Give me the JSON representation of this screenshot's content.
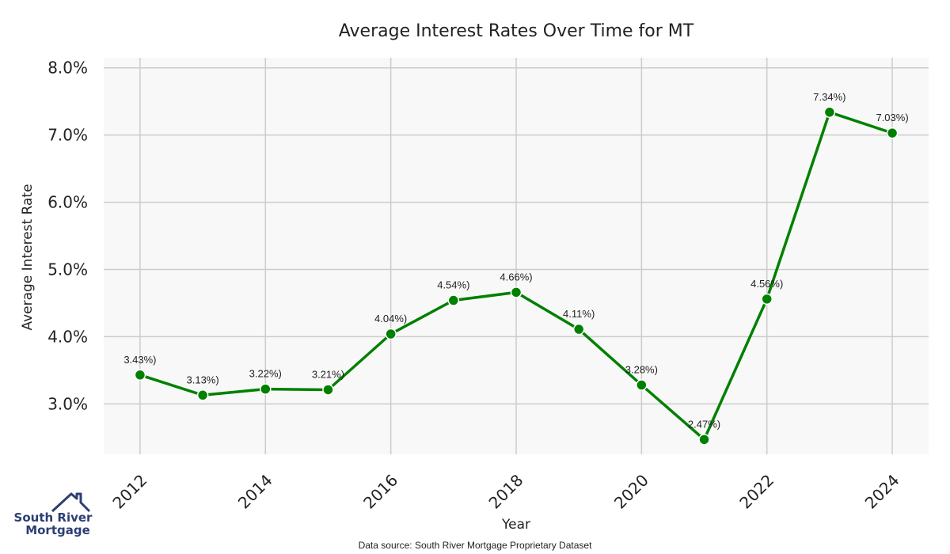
{
  "chart_data": {
    "type": "line",
    "title": "Average Interest Rates Over Time for MT",
    "xlabel": "Year",
    "ylabel": "Average Interest Rate",
    "x": [
      2012,
      2013,
      2014,
      2015,
      2016,
      2017,
      2018,
      2019,
      2020,
      2021,
      2022,
      2023,
      2024
    ],
    "series": [
      {
        "values": [
          3.43,
          3.13,
          3.22,
          3.21,
          4.04,
          4.54,
          4.66,
          4.11,
          3.28,
          2.47,
          4.56,
          7.34,
          7.03
        ],
        "point_labels": [
          "3.43%)",
          "3.13%)",
          "3.22%)",
          "3.21%)",
          "4.04%)",
          "4.54%)",
          "4.66%)",
          "4.11%)",
          "3.28%)",
          "2.47%)",
          "4.56%)",
          "7.34%)",
          "7.03%)"
        ],
        "color": "#008000"
      }
    ],
    "x_ticks": [
      "2012",
      "2014",
      "2016",
      "2018",
      "2020",
      "2022",
      "2024"
    ],
    "x_tick_values": [
      2012,
      2014,
      2016,
      2018,
      2020,
      2022,
      2024
    ],
    "y_ticks": [
      "3.0%",
      "4.0%",
      "5.0%",
      "6.0%",
      "7.0%",
      "8.0%"
    ],
    "y_tick_values": [
      3,
      4,
      5,
      6,
      7,
      8
    ],
    "xlim": [
      2011.42,
      2024.58
    ],
    "ylim": [
      2.25,
      8.15
    ],
    "grid": true,
    "legend": "none"
  },
  "source_note": "Data source: South River Mortgage Proprietary Dataset",
  "logo": {
    "line1": "South River",
    "line2": "Mortgage",
    "color": "#2d3e73"
  },
  "colors": {
    "plot_background": "#f8f8f8",
    "grid": "#cccccc",
    "line": "#008000"
  }
}
